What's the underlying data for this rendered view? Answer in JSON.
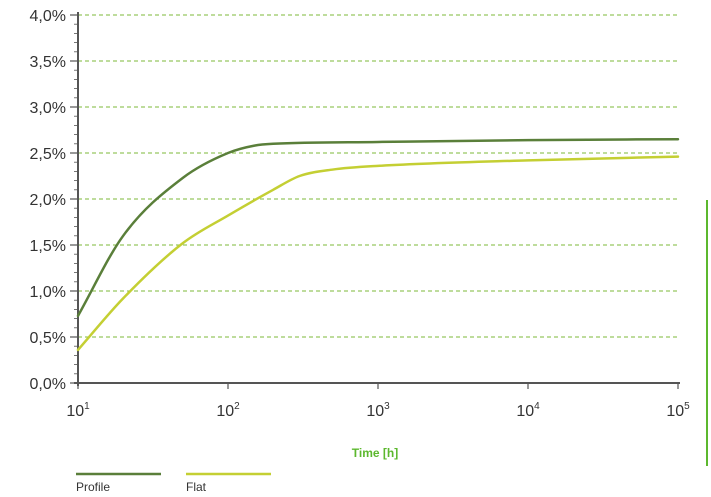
{
  "chart_data": {
    "type": "line",
    "title": "",
    "xlabel": "Time [h]",
    "ylabel": "",
    "x_scale": "log",
    "xlim": [
      10,
      100000
    ],
    "ylim": [
      0,
      4.0
    ],
    "y_unit": "%",
    "x_ticks": [
      {
        "base": "10",
        "exp": "1",
        "value": 10
      },
      {
        "base": "10",
        "exp": "2",
        "value": 100
      },
      {
        "base": "10",
        "exp": "3",
        "value": 1000
      },
      {
        "base": "10",
        "exp": "4",
        "value": 10000
      },
      {
        "base": "10",
        "exp": "5",
        "value": 100000
      }
    ],
    "y_ticks": [
      {
        "label": "0,0%",
        "value": 0.0
      },
      {
        "label": "0,5%",
        "value": 0.5
      },
      {
        "label": "1,0%",
        "value": 1.0
      },
      {
        "label": "1,5%",
        "value": 1.5
      },
      {
        "label": "2,0%",
        "value": 2.0
      },
      {
        "label": "2,5%",
        "value": 2.5
      },
      {
        "label": "3,0%",
        "value": 3.0
      },
      {
        "label": "3,5%",
        "value": 3.5
      },
      {
        "label": "4,0%",
        "value": 4.0
      }
    ],
    "grid": "horizontal-dashed",
    "legend_position": "bottom-left",
    "series": [
      {
        "name": "Profile",
        "color": "#5a7f3a",
        "points": [
          [
            10,
            0.73
          ],
          [
            20,
            1.6
          ],
          [
            50,
            2.23
          ],
          [
            100,
            2.5
          ],
          [
            150,
            2.58
          ],
          [
            200,
            2.6
          ],
          [
            1000,
            2.62
          ],
          [
            10000,
            2.64
          ],
          [
            100000,
            2.65
          ]
        ]
      },
      {
        "name": "Flat",
        "color": "#c4cf33",
        "points": [
          [
            10,
            0.36
          ],
          [
            20,
            0.92
          ],
          [
            50,
            1.52
          ],
          [
            100,
            1.82
          ],
          [
            200,
            2.1
          ],
          [
            300,
            2.25
          ],
          [
            500,
            2.32
          ],
          [
            1000,
            2.36
          ],
          [
            10000,
            2.42
          ],
          [
            100000,
            2.46
          ]
        ]
      }
    ]
  },
  "colors": {
    "axis": "#555555",
    "grid": "#7db83a",
    "xlabel": "#5cb82e",
    "right_marker": "#5cb82e"
  }
}
